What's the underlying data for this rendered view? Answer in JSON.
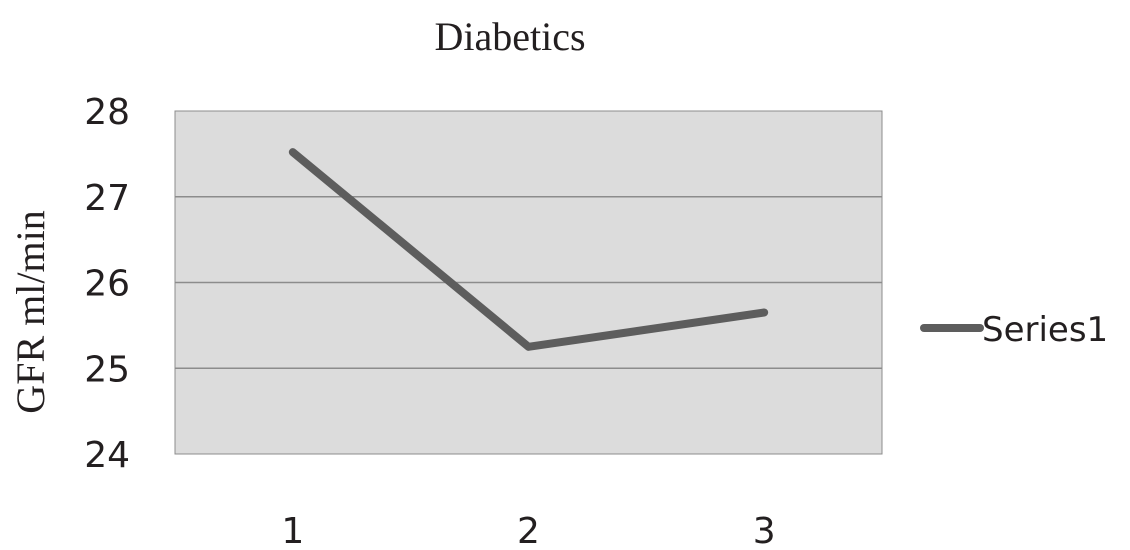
{
  "chart_data": {
    "type": "line",
    "title": "Diabetics",
    "xlabel": "",
    "ylabel": "GFR ml/min",
    "categories": [
      "1",
      "2",
      "3"
    ],
    "ylim": [
      24,
      28
    ],
    "yticks": [
      "28",
      "27",
      "26",
      "25",
      "24"
    ],
    "grid": true,
    "legend_position": "right",
    "series": [
      {
        "name": "Series1",
        "values": [
          27.52,
          25.25,
          25.65
        ],
        "color": "#5d5d5d"
      }
    ],
    "plot_background": "#dcdcdc",
    "gridline_color": "#8c8c8c"
  }
}
